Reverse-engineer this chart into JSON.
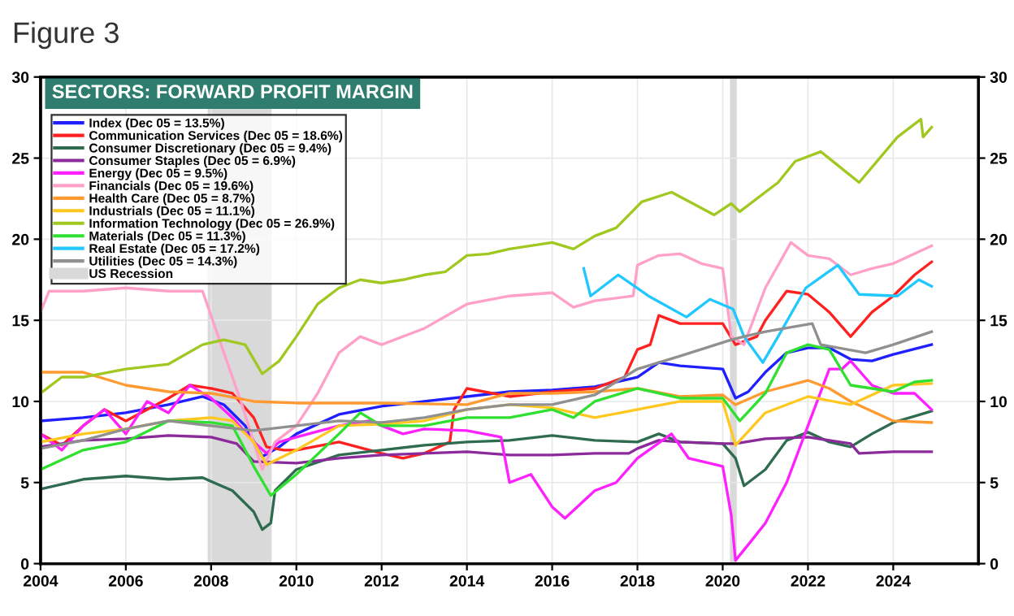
{
  "chart_data": {
    "type": "line",
    "title": "Figure 3",
    "subtitle": "SECTORS: FORWARD PROFIT MARGIN",
    "xlim": [
      2004,
      2026
    ],
    "xticks": [
      2004,
      2006,
      2008,
      2010,
      2012,
      2014,
      2016,
      2018,
      2020,
      2022,
      2024
    ],
    "ylim": [
      0,
      30
    ],
    "yticks": [
      0,
      5,
      10,
      15,
      20,
      25,
      30
    ],
    "y2lim": [
      0,
      30
    ],
    "y2ticks": [
      0,
      5,
      10,
      15,
      20,
      25,
      30
    ],
    "grid": true,
    "legend": "top left",
    "line_style": "solid",
    "bands": [
      {
        "axis": "x",
        "from": 2007.92,
        "to": 2009.42,
        "label": "US Recession",
        "color": "#d9d9d9"
      },
      {
        "axis": "x",
        "from": 2020.17,
        "to": 2020.33,
        "color": "#d9d9d9"
      }
    ],
    "series": [
      {
        "name": "Index (Dec 05 = 13.5%)",
        "color": "#1f1fff",
        "x": [
          2004,
          2005,
          2006,
          2007,
          2007.8,
          2008.3,
          2008.8,
          2009.2,
          2009.6,
          2010,
          2011,
          2012,
          2013,
          2014,
          2015,
          2016,
          2017,
          2018,
          2018.5,
          2019,
          2020,
          2020.3,
          2020.6,
          2021,
          2021.5,
          2022,
          2022.5,
          2023,
          2023.5,
          2024,
          2024.9
        ],
        "values": [
          8.8,
          9.0,
          9.3,
          9.8,
          10.3,
          9.8,
          8.5,
          6.6,
          7.2,
          8.0,
          9.2,
          9.7,
          10.0,
          10.3,
          10.6,
          10.7,
          10.9,
          11.5,
          12.4,
          12.2,
          12.0,
          10.2,
          10.6,
          11.8,
          13.0,
          13.3,
          13.3,
          12.6,
          12.5,
          12.9,
          13.5
        ]
      },
      {
        "name": "Communication Services (Dec 05 = 18.6%)",
        "color": "#ff2020",
        "x": [
          2004,
          2004.5,
          2005,
          2005.5,
          2006,
          2006.5,
          2007,
          2007.5,
          2008,
          2008.5,
          2009,
          2009.3,
          2009.7,
          2010,
          2011,
          2012,
          2012.5,
          2013,
          2013.6,
          2013.7,
          2014,
          2015,
          2016,
          2017,
          2017.7,
          2018,
          2018.3,
          2018.5,
          2019,
          2020,
          2020.3,
          2020.8,
          2021,
          2021.5,
          2022,
          2022.5,
          2023,
          2023.5,
          2024,
          2024.5,
          2024.9
        ],
        "values": [
          8.0,
          7.3,
          8.5,
          9.5,
          8.8,
          9.5,
          10.2,
          11.0,
          10.8,
          10.5,
          9.0,
          7.2,
          7.0,
          7.0,
          7.5,
          6.8,
          6.5,
          6.8,
          7.5,
          9.5,
          10.8,
          10.3,
          10.6,
          10.8,
          11.5,
          13.2,
          13.5,
          15.3,
          14.8,
          14.8,
          13.5,
          14.0,
          15.0,
          16.8,
          16.6,
          15.5,
          14.0,
          15.5,
          16.5,
          17.8,
          18.6
        ]
      },
      {
        "name": "Consumer Discretionary (Dec 05 = 9.4%)",
        "color": "#2e6b4f",
        "x": [
          2004,
          2005,
          2006,
          2007,
          2007.8,
          2008.5,
          2009,
          2009.2,
          2009.4,
          2009.5,
          2010,
          2011,
          2012,
          2013,
          2014,
          2015,
          2016,
          2017,
          2018,
          2018.5,
          2019,
          2020,
          2020.3,
          2020.5,
          2021,
          2021.5,
          2022,
          2022.5,
          2023,
          2023.5,
          2024,
          2024.9
        ],
        "values": [
          4.6,
          5.2,
          5.4,
          5.2,
          5.3,
          4.5,
          3.2,
          2.1,
          2.5,
          4.5,
          5.8,
          6.7,
          7.0,
          7.3,
          7.5,
          7.6,
          7.9,
          7.6,
          7.5,
          8.0,
          7.5,
          7.4,
          6.5,
          4.8,
          5.8,
          7.6,
          8.1,
          7.5,
          7.2,
          8.0,
          8.7,
          9.4
        ]
      },
      {
        "name": "Consumer Staples (Dec 05 = 6.9%)",
        "color": "#8b2a9a",
        "x": [
          2004,
          2005,
          2006,
          2007,
          2008,
          2008.6,
          2009,
          2010,
          2011,
          2012,
          2013,
          2014,
          2015,
          2016,
          2017,
          2017.8,
          2018,
          2018.5,
          2019,
          2020,
          2020.3,
          2021,
          2022,
          2023,
          2023.2,
          2024,
          2024.9
        ],
        "values": [
          7.2,
          7.6,
          7.7,
          7.9,
          7.8,
          7.4,
          6.3,
          6.2,
          6.5,
          6.7,
          6.8,
          6.9,
          6.7,
          6.7,
          6.8,
          6.8,
          7.1,
          7.6,
          7.5,
          7.4,
          7.4,
          7.7,
          7.8,
          7.4,
          6.8,
          6.9,
          6.9
        ]
      },
      {
        "name": "Energy (Dec 05 = 9.5%)",
        "color": "#ff20ff",
        "x": [
          2004,
          2004.5,
          2005,
          2005.5,
          2006,
          2006.5,
          2007,
          2007.5,
          2008,
          2008.5,
          2009,
          2009.3,
          2009.6,
          2010,
          2011,
          2011.7,
          2012,
          2012.5,
          2013,
          2014,
          2014.8,
          2015,
          2015.5,
          2016,
          2016.3,
          2017,
          2017.5,
          2018,
          2018.8,
          2019.2,
          2020,
          2020.2,
          2020.3,
          2020.7,
          2021,
          2021.5,
          2022,
          2022.5,
          2022.8,
          2023,
          2023.5,
          2024,
          2024.5,
          2024.9
        ],
        "values": [
          8.0,
          7.0,
          8.5,
          9.5,
          8.0,
          10.0,
          9.3,
          11.0,
          10.2,
          9.0,
          7.5,
          6.8,
          7.5,
          7.8,
          8.5,
          8.8,
          8.5,
          8.0,
          8.3,
          8.2,
          7.8,
          5.0,
          5.5,
          3.5,
          2.8,
          4.5,
          5.0,
          6.5,
          8.0,
          6.5,
          6.0,
          3.0,
          0.2,
          1.5,
          2.5,
          5.0,
          8.5,
          12.0,
          12.0,
          12.5,
          11.0,
          10.5,
          10.5,
          9.5
        ]
      },
      {
        "name": "Financials (Dec 05 = 19.6%)",
        "color": "#ffa0c8",
        "x": [
          2004,
          2004.2,
          2005,
          2006,
          2007,
          2007.8,
          2008.3,
          2008.7,
          2009.2,
          2009.5,
          2010,
          2010.5,
          2011,
          2011.5,
          2012,
          2013,
          2014,
          2015,
          2016,
          2016.5,
          2017,
          2017.9,
          2018,
          2018.5,
          2019,
          2019.5,
          2020,
          2020.2,
          2020.5,
          2021,
          2021.6,
          2022,
          2022.5,
          2023,
          2023.5,
          2024,
          2024.9
        ],
        "values": [
          15.5,
          16.8,
          16.8,
          17.0,
          16.8,
          16.8,
          13.0,
          10.0,
          5.8,
          7.5,
          8.5,
          10.5,
          13.0,
          14.0,
          13.5,
          14.5,
          16.0,
          16.5,
          16.7,
          15.8,
          16.2,
          16.5,
          18.4,
          19.0,
          19.1,
          18.5,
          18.2,
          14.0,
          13.5,
          17.0,
          19.8,
          19.0,
          18.8,
          17.8,
          18.2,
          18.5,
          19.6
        ]
      },
      {
        "name": "Health Care (Dec 05 = 8.7%)",
        "color": "#ff9a30",
        "x": [
          2004,
          2005,
          2006,
          2007,
          2008,
          2009,
          2010,
          2012,
          2014,
          2015,
          2016,
          2017,
          2018,
          2019,
          2020,
          2020.3,
          2021,
          2022,
          2022.5,
          2023,
          2024,
          2024.9
        ],
        "values": [
          11.8,
          11.8,
          11.0,
          10.6,
          10.5,
          10.0,
          9.9,
          9.9,
          9.8,
          10.5,
          10.5,
          10.6,
          10.8,
          10.3,
          10.4,
          9.8,
          10.6,
          11.3,
          10.8,
          10.0,
          8.8,
          8.7
        ]
      },
      {
        "name": "Industrials (Dec 05 = 11.1%)",
        "color": "#ffc820",
        "x": [
          2004,
          2005,
          2006,
          2007,
          2008,
          2008.5,
          2009,
          2009.3,
          2010,
          2011,
          2012,
          2013,
          2014,
          2015,
          2016,
          2017,
          2018,
          2019,
          2020,
          2020.3,
          2021,
          2022,
          2023,
          2024,
          2024.9
        ],
        "values": [
          7.5,
          8.0,
          8.3,
          8.8,
          9.0,
          8.8,
          7.5,
          6.1,
          7.0,
          8.5,
          8.6,
          8.8,
          9.5,
          9.8,
          9.6,
          9.0,
          9.5,
          10.0,
          10.0,
          7.3,
          9.3,
          10.3,
          9.8,
          11.0,
          11.1
        ]
      },
      {
        "name": "Information Technology (Dec 05 = 26.9%)",
        "color": "#a0c820",
        "x": [
          2004,
          2004.5,
          2005,
          2006,
          2007,
          2007.8,
          2008.3,
          2008.8,
          2009.2,
          2009.6,
          2010,
          2010.5,
          2011,
          2011.5,
          2012,
          2012.5,
          2013,
          2013.5,
          2014,
          2014.5,
          2015,
          2016,
          2016.5,
          2017,
          2017.5,
          2018.1,
          2018.8,
          2019.8,
          2020.2,
          2020.4,
          2021.3,
          2021.7,
          2022.3,
          2023.2,
          2024.1,
          2024.65,
          2024.7,
          2024.9
        ],
        "values": [
          10.5,
          11.5,
          11.5,
          12.0,
          12.3,
          13.5,
          13.8,
          13.5,
          11.7,
          12.5,
          14.0,
          16.0,
          17.0,
          17.5,
          17.3,
          17.5,
          17.8,
          18.0,
          19.0,
          19.1,
          19.4,
          19.8,
          19.4,
          20.2,
          20.7,
          22.3,
          22.9,
          21.5,
          22.2,
          21.7,
          23.5,
          24.8,
          25.4,
          23.5,
          26.3,
          27.4,
          26.3,
          26.9
        ]
      },
      {
        "name": "Materials (Dec 05 = 11.3%)",
        "color": "#30e030",
        "x": [
          2004,
          2005,
          2006,
          2007,
          2008,
          2008.5,
          2009,
          2009.4,
          2010,
          2011,
          2011.5,
          2012,
          2013,
          2014,
          2015,
          2016,
          2016.5,
          2017,
          2018,
          2018.5,
          2019,
          2020,
          2020.4,
          2021,
          2021.5,
          2022,
          2022.5,
          2023,
          2024,
          2024.5,
          2024.9
        ],
        "values": [
          5.8,
          7.0,
          7.5,
          8.8,
          8.7,
          8.5,
          6.0,
          4.2,
          5.5,
          8.0,
          9.3,
          8.5,
          8.5,
          9.0,
          9.0,
          9.5,
          9.0,
          10.0,
          10.8,
          10.5,
          10.2,
          10.2,
          8.8,
          10.5,
          13.0,
          13.5,
          13.2,
          11.0,
          10.6,
          11.2,
          11.3
        ]
      },
      {
        "name": "Real Estate (Dec 05 = 17.2%)",
        "color": "#20c8ff",
        "x": [
          2016.74,
          2016.9,
          2017.55,
          2018.26,
          2019.15,
          2019.7,
          2020.24,
          2020.5,
          2020.94,
          2021.3,
          2021.95,
          2022.7,
          2023.2,
          2024.1,
          2024.6,
          2024.9
        ],
        "values": [
          18.2,
          16.5,
          17.8,
          16.5,
          15.2,
          16.3,
          15.7,
          14.0,
          12.4,
          14.0,
          17.0,
          18.4,
          16.6,
          16.5,
          17.5,
          17.1
        ]
      },
      {
        "name": "Utilities (Dec 05 = 14.3%)",
        "color": "#909090",
        "x": [
          2004,
          2005,
          2006,
          2007,
          2008,
          2009,
          2010,
          2011,
          2012,
          2013,
          2014,
          2015,
          2016,
          2017,
          2018,
          2019,
          2020.2,
          2020.5,
          2021,
          2022.1,
          2022.3,
          2023.35,
          2024,
          2024.9
        ],
        "values": [
          7.1,
          7.6,
          8.3,
          8.8,
          8.5,
          8.2,
          8.5,
          8.8,
          8.7,
          9.0,
          9.5,
          9.8,
          9.8,
          10.4,
          12.0,
          12.8,
          13.8,
          14.0,
          14.3,
          14.8,
          13.5,
          13.0,
          13.5,
          14.3
        ]
      }
    ]
  }
}
